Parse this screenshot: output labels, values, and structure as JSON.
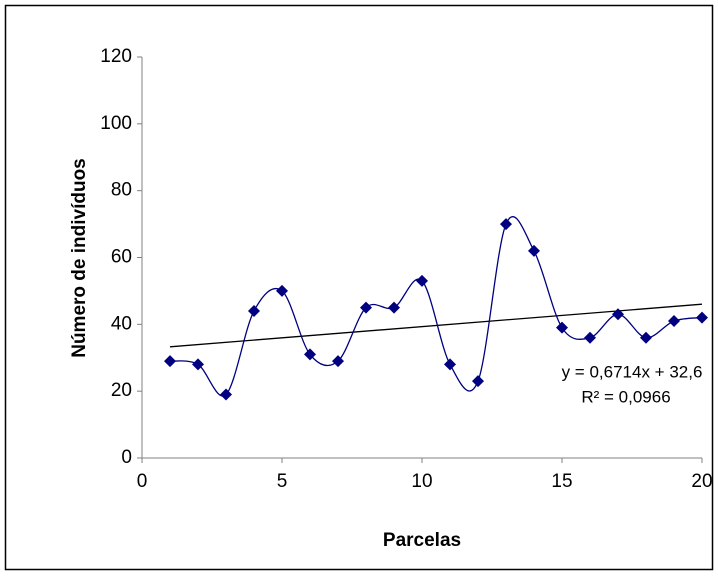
{
  "chart_data": {
    "type": "scatter",
    "x_label": "Parcelas",
    "y_label": "Número de indivíduos",
    "x": [
      1,
      2,
      3,
      4,
      5,
      6,
      7,
      8,
      9,
      10,
      11,
      12,
      13,
      14,
      15,
      16,
      17,
      18,
      19,
      20
    ],
    "series": [
      {
        "color": "#000080",
        "values": [
          29,
          28,
          19,
          44,
          50,
          31,
          29,
          45,
          45,
          53,
          28,
          23,
          70,
          62,
          39,
          36,
          43,
          36,
          41,
          42
        ]
      }
    ],
    "smooth": true,
    "trendline": {
      "slope": 0.6714,
      "intercept": 32.6,
      "color": "#000000",
      "equation": "y = 0,6714x + 32,6",
      "r2": "R² = 0,0966"
    },
    "xlim": [
      0,
      20
    ],
    "xticks": [
      0,
      5,
      10,
      15,
      20
    ],
    "ylim": [
      0,
      120
    ],
    "yticks": [
      0,
      20,
      40,
      60,
      80,
      100,
      120
    ],
    "grid": false
  }
}
